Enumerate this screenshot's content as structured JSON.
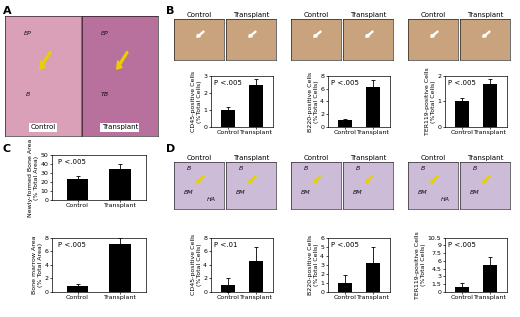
{
  "panels": [
    {
      "label": "A",
      "images": [
        {
          "caption": "Control",
          "marks": [
            "EP",
            "B"
          ]
        },
        {
          "caption": "Transplant",
          "marks": [
            "EP",
            "TB"
          ]
        }
      ]
    },
    {
      "label": "B",
      "images": [
        {
          "caption": "Control"
        },
        {
          "caption": "Transplant"
        },
        {
          "caption": "Control"
        },
        {
          "caption": "Transplant"
        },
        {
          "caption": "Control"
        },
        {
          "caption": "Transplant"
        }
      ]
    },
    {
      "label": "C"
    },
    {
      "label": "D",
      "images": [
        {
          "caption": "Control",
          "marks": [
            "B",
            "BM",
            "HA"
          ]
        },
        {
          "caption": "Transplant",
          "marks": [
            "B",
            "BM"
          ]
        },
        {
          "caption": "Control",
          "marks": [
            "B",
            "BM"
          ]
        },
        {
          "caption": "Transplant",
          "marks": [
            "B",
            "BM"
          ]
        },
        {
          "caption": "Control",
          "marks": [
            "B",
            "BM",
            "HA"
          ]
        },
        {
          "caption": "Transplant",
          "marks": [
            "B",
            "BM"
          ]
        }
      ]
    }
  ],
  "chart_data": [
    {
      "type": "bar",
      "y_label": "CD45-positive Cells\n(%Total Cells)",
      "categories": [
        "Control",
        "Transplant"
      ],
      "values": [
        1.0,
        2.5
      ],
      "errors": [
        0.2,
        0.3
      ],
      "color": "#000000",
      "ylim": [
        0,
        3
      ],
      "yticks": [
        0,
        1,
        2,
        3
      ],
      "annotations": [
        "P <.005"
      ]
    },
    {
      "type": "bar",
      "y_label": "B220-positive Cells\n(%Total Cells)",
      "categories": [
        "Control",
        "Transplant"
      ],
      "values": [
        1.0,
        6.2
      ],
      "errors": [
        0.3,
        1.2
      ],
      "color": "#000000",
      "ylim": [
        0,
        8
      ],
      "yticks": [
        0,
        2,
        4,
        6,
        8
      ],
      "annotations": [
        "P <.005"
      ]
    },
    {
      "type": "bar",
      "y_label": "TER119-positive Cells\n(%Total Cells)",
      "categories": [
        "Control",
        "Transplant"
      ],
      "values": [
        1.0,
        1.7
      ],
      "errors": [
        0.15,
        0.2
      ],
      "color": "#000000",
      "ylim": [
        0,
        2
      ],
      "yticks": [
        0,
        1,
        2
      ],
      "annotations": [
        "P <.005"
      ]
    },
    {
      "type": "bar",
      "y_label": "Newly-formed Bone Area\n(% Total Area)",
      "categories": [
        "Control",
        "Transplant"
      ],
      "values": [
        23,
        35
      ],
      "errors": [
        4,
        5
      ],
      "color": "#000000",
      "ylim": [
        0,
        50
      ],
      "yticks": [
        0,
        10,
        20,
        30,
        40,
        50
      ],
      "annotations": [
        "P <.005"
      ]
    },
    {
      "type": "bar",
      "y_label": "Bone marrow Area\n(% Total Area)",
      "categories": [
        "Control",
        "Transplant"
      ],
      "values": [
        0.8,
        7.0
      ],
      "errors": [
        0.3,
        1.0
      ],
      "color": "#000000",
      "ylim": [
        0,
        8
      ],
      "yticks": [
        0,
        2,
        4,
        6,
        8
      ],
      "annotations": [
        "P <.005"
      ]
    },
    {
      "type": "bar",
      "y_label": "CD45-positive Cells\n(%Total Cells)",
      "categories": [
        "Control",
        "Transplant"
      ],
      "values": [
        1.0,
        4.6
      ],
      "errors": [
        1.0,
        2.0
      ],
      "color": "#000000",
      "ylim": [
        0,
        8
      ],
      "yticks": [
        0,
        2,
        4,
        6,
        8
      ],
      "annotations": [
        "P <.01"
      ]
    },
    {
      "type": "bar",
      "y_label": "B220-positive Cells\n(%Total Cells)",
      "categories": [
        "Control",
        "Transplant"
      ],
      "values": [
        1.0,
        3.2
      ],
      "errors": [
        0.8,
        1.8
      ],
      "color": "#000000",
      "ylim": [
        0,
        6
      ],
      "yticks": [
        0,
        1,
        2,
        3,
        4,
        5,
        6
      ],
      "annotations": [
        "P <.005"
      ]
    },
    {
      "type": "bar",
      "y_label": "TER119-positive Cells\n(%Total Cells)",
      "categories": [
        "Control",
        "Transplant"
      ],
      "values": [
        1.0,
        5.2
      ],
      "errors": [
        0.6,
        1.6
      ],
      "color": "#000000",
      "ylim": [
        0,
        10.5
      ],
      "yticks": [
        0,
        1.5,
        3,
        4.5,
        6,
        7.5,
        9,
        10.5
      ],
      "annotations": [
        "P <.005"
      ]
    }
  ]
}
